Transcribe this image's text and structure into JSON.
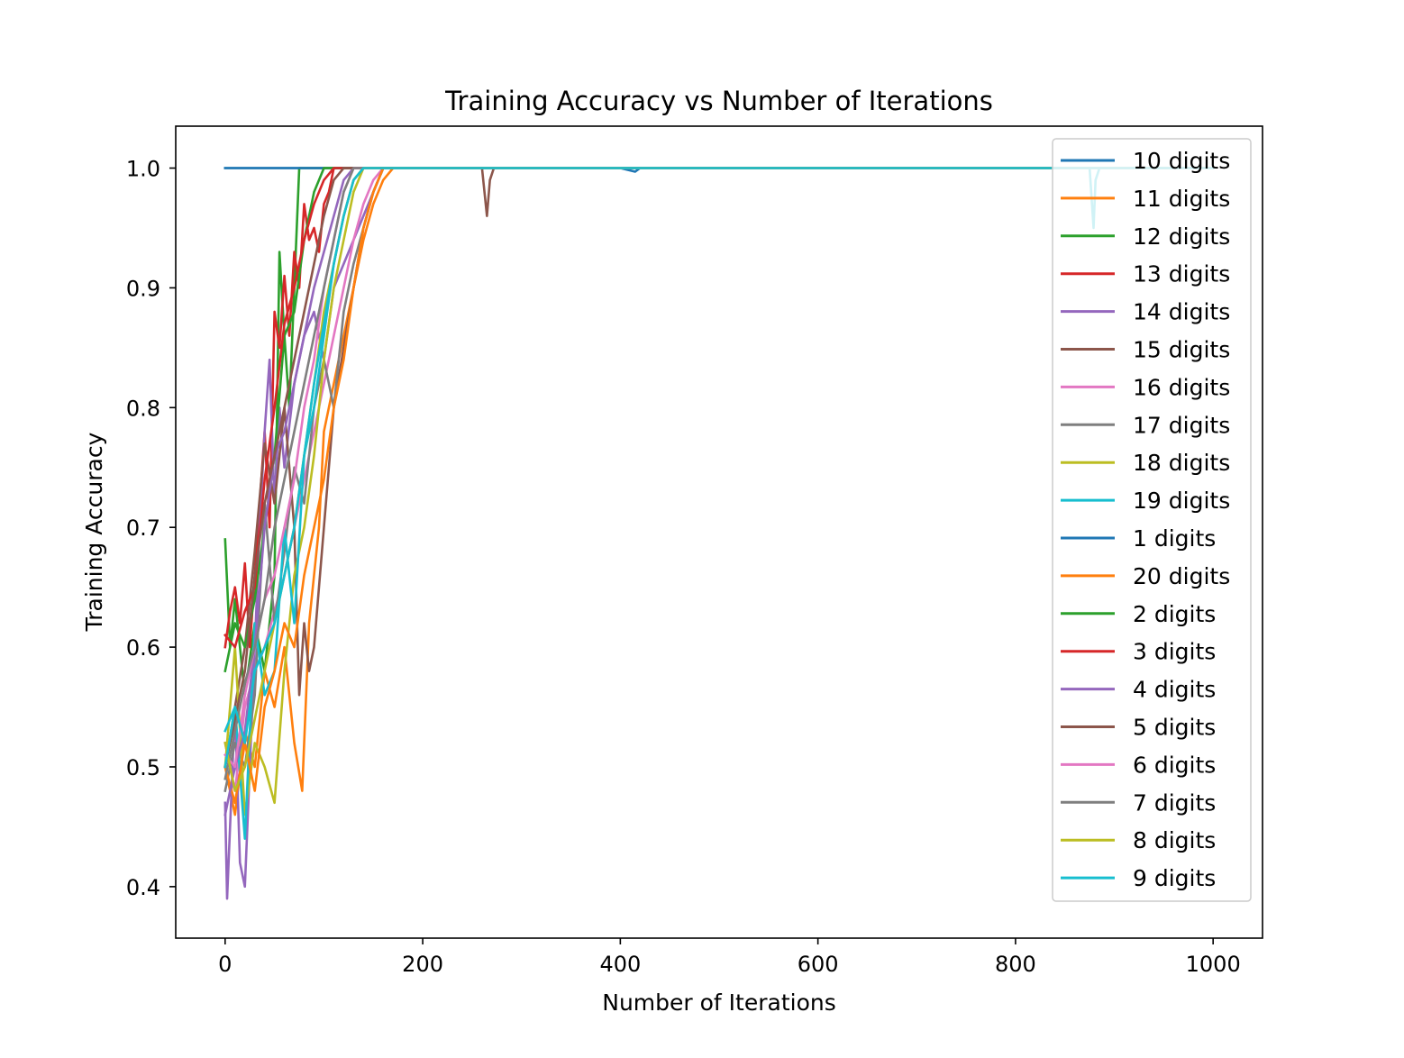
{
  "chart_data": {
    "type": "line",
    "title": "Training Accuracy vs Number of Iterations",
    "xlabel": "Number of Iterations",
    "ylabel": "Training Accuracy",
    "xlim": [
      -50,
      1050
    ],
    "ylim": [
      0.357,
      1.035
    ],
    "xticks": [
      0,
      200,
      400,
      600,
      800,
      1000
    ],
    "xtick_labels": [
      "0",
      "200",
      "400",
      "600",
      "800",
      "1000"
    ],
    "yticks": [
      0.4,
      0.5,
      0.6,
      0.7,
      0.8,
      0.9,
      1.0
    ],
    "ytick_labels": [
      "0.4",
      "0.5",
      "0.6",
      "0.7",
      "0.8",
      "0.9",
      "1.0"
    ],
    "grid": false,
    "legend_position": "top-right",
    "series": [
      {
        "name": "10 digits",
        "color": "#1f77b4",
        "x": [
          0,
          40,
          80,
          120,
          200,
          400,
          415,
          420,
          800,
          1000
        ],
        "y": [
          1.0,
          1.0,
          1.0,
          1.0,
          1.0,
          1.0,
          0.997,
          1.0,
          1.0,
          1.0
        ]
      },
      {
        "name": "11 digits",
        "color": "#ff7f0e",
        "x": [
          0,
          10,
          20,
          30,
          40,
          50,
          60,
          70,
          78,
          85,
          90,
          95,
          100,
          110,
          120,
          130,
          140,
          150,
          160,
          170,
          200,
          330,
          1000
        ],
        "y": [
          0.5,
          0.46,
          0.53,
          0.5,
          0.58,
          0.55,
          0.6,
          0.52,
          0.48,
          0.62,
          0.66,
          0.7,
          0.78,
          0.82,
          0.86,
          0.9,
          0.94,
          0.97,
          0.99,
          1.0,
          1.0,
          1.0,
          1.0
        ]
      },
      {
        "name": "12 digits",
        "color": "#2ca02c",
        "x": [
          0,
          5,
          10,
          20,
          30,
          40,
          50,
          55,
          60,
          65,
          70,
          75,
          80,
          90,
          100,
          110,
          200,
          1000
        ],
        "y": [
          0.69,
          0.6,
          0.64,
          0.56,
          0.62,
          0.58,
          0.66,
          0.93,
          0.86,
          0.8,
          0.9,
          1.0,
          1.0,
          1.0,
          1.0,
          1.0,
          1.0,
          1.0
        ]
      },
      {
        "name": "13 digits",
        "color": "#d62728",
        "x": [
          0,
          5,
          10,
          15,
          20,
          25,
          30,
          35,
          40,
          45,
          50,
          55,
          60,
          65,
          70,
          75,
          80,
          85,
          90,
          95,
          100,
          105,
          110,
          115,
          200,
          1000
        ],
        "y": [
          0.6,
          0.63,
          0.65,
          0.62,
          0.67,
          0.6,
          0.66,
          0.72,
          0.78,
          0.7,
          0.88,
          0.85,
          0.91,
          0.86,
          0.93,
          0.9,
          0.97,
          0.94,
          0.95,
          0.93,
          0.97,
          0.98,
          1.0,
          1.0,
          1.0,
          1.0
        ]
      },
      {
        "name": "14 digits",
        "color": "#9467bd",
        "x": [
          0,
          2,
          5,
          10,
          15,
          20,
          25,
          30,
          35,
          40,
          45,
          50,
          55,
          60,
          70,
          80,
          90,
          100,
          110,
          120,
          130,
          140,
          150,
          160,
          170,
          1000
        ],
        "y": [
          0.47,
          0.39,
          0.45,
          0.55,
          0.42,
          0.4,
          0.5,
          0.6,
          0.7,
          0.78,
          0.84,
          0.72,
          0.8,
          0.75,
          0.82,
          0.86,
          0.88,
          0.84,
          0.9,
          0.92,
          0.94,
          0.96,
          0.98,
          1.0,
          1.0,
          1.0
        ]
      },
      {
        "name": "15 digits",
        "color": "#8c564b",
        "x": [
          0,
          10,
          20,
          30,
          40,
          50,
          60,
          70,
          75,
          80,
          85,
          90,
          100,
          110,
          120,
          130,
          140,
          150,
          160,
          260,
          265,
          268,
          272,
          280,
          1000
        ],
        "y": [
          0.5,
          0.55,
          0.6,
          0.68,
          0.77,
          0.72,
          0.8,
          0.7,
          0.56,
          0.62,
          0.58,
          0.6,
          0.7,
          0.8,
          0.85,
          0.9,
          0.95,
          0.98,
          1.0,
          1.0,
          0.96,
          0.99,
          1.0,
          1.0,
          1.0
        ]
      },
      {
        "name": "16 digits",
        "color": "#e377c2",
        "x": [
          0,
          10,
          20,
          30,
          40,
          50,
          60,
          70,
          80,
          90,
          100,
          110,
          120,
          130,
          140,
          150,
          160,
          1000
        ],
        "y": [
          0.52,
          0.48,
          0.55,
          0.58,
          0.6,
          0.63,
          0.66,
          0.7,
          0.74,
          0.78,
          0.82,
          0.86,
          0.9,
          0.94,
          0.97,
          0.99,
          1.0,
          1.0
        ]
      },
      {
        "name": "17 digits",
        "color": "#7f7f7f",
        "x": [
          0,
          10,
          20,
          30,
          40,
          50,
          60,
          70,
          80,
          90,
          100,
          110,
          120,
          130,
          140,
          150,
          160,
          1000
        ],
        "y": [
          0.48,
          0.52,
          0.5,
          0.56,
          0.72,
          0.62,
          0.68,
          0.75,
          0.72,
          0.8,
          0.84,
          0.8,
          0.88,
          0.92,
          0.95,
          0.98,
          1.0,
          1.0
        ]
      },
      {
        "name": "18 digits",
        "color": "#bcbd22",
        "x": [
          0,
          10,
          20,
          30,
          40,
          50,
          60,
          70,
          80,
          90,
          100,
          110,
          120,
          130,
          140,
          150,
          1000
        ],
        "y": [
          0.5,
          0.6,
          0.46,
          0.52,
          0.5,
          0.47,
          0.58,
          0.66,
          0.7,
          0.76,
          0.84,
          0.9,
          0.94,
          0.98,
          1.0,
          1.0,
          1.0
        ]
      },
      {
        "name": "19 digits",
        "color": "#17becf",
        "x": [
          0,
          10,
          20,
          30,
          40,
          50,
          60,
          70,
          80,
          90,
          100,
          110,
          120,
          130,
          140,
          150,
          600,
          875,
          879,
          881,
          885,
          1000
        ],
        "y": [
          0.53,
          0.55,
          0.44,
          0.62,
          0.56,
          0.58,
          0.7,
          0.62,
          0.76,
          0.8,
          0.86,
          0.92,
          0.96,
          0.99,
          1.0,
          1.0,
          1.0,
          1.0,
          0.95,
          0.99,
          1.0,
          1.0
        ]
      },
      {
        "name": "1 digits",
        "color": "#1f77b4",
        "x": [
          0,
          100,
          300,
          600,
          1000
        ],
        "y": [
          1.0,
          1.0,
          1.0,
          1.0,
          1.0
        ]
      },
      {
        "name": "20 digits",
        "color": "#ff7f0e",
        "x": [
          0,
          10,
          20,
          30,
          40,
          50,
          60,
          70,
          80,
          90,
          100,
          110,
          120,
          130,
          140,
          150,
          160,
          170,
          1000
        ],
        "y": [
          0.5,
          0.47,
          0.52,
          0.48,
          0.55,
          0.58,
          0.62,
          0.6,
          0.66,
          0.7,
          0.74,
          0.8,
          0.84,
          0.9,
          0.95,
          0.98,
          1.0,
          1.0,
          1.0
        ]
      },
      {
        "name": "2 digits",
        "color": "#2ca02c",
        "x": [
          0,
          10,
          20,
          30,
          40,
          50,
          60,
          70,
          80,
          90,
          100,
          110,
          1000
        ],
        "y": [
          0.58,
          0.62,
          0.6,
          0.64,
          0.7,
          0.76,
          0.86,
          0.88,
          0.94,
          0.98,
          1.0,
          1.0,
          1.0
        ]
      },
      {
        "name": "3 digits",
        "color": "#d62728",
        "x": [
          0,
          10,
          20,
          30,
          40,
          50,
          60,
          70,
          80,
          90,
          100,
          110,
          1000
        ],
        "y": [
          0.61,
          0.6,
          0.63,
          0.65,
          0.74,
          0.8,
          0.87,
          0.9,
          0.94,
          0.97,
          0.99,
          1.0,
          1.0
        ]
      },
      {
        "name": "4 digits",
        "color": "#9467bd",
        "x": [
          0,
          10,
          20,
          30,
          40,
          50,
          60,
          70,
          80,
          90,
          100,
          110,
          120,
          130,
          1000
        ],
        "y": [
          0.46,
          0.5,
          0.53,
          0.6,
          0.7,
          0.76,
          0.78,
          0.82,
          0.86,
          0.9,
          0.93,
          0.96,
          0.99,
          1.0,
          1.0
        ]
      },
      {
        "name": "5 digits",
        "color": "#8c564b",
        "x": [
          0,
          10,
          20,
          30,
          40,
          50,
          60,
          70,
          80,
          90,
          100,
          110,
          120,
          1000
        ],
        "y": [
          0.5,
          0.54,
          0.58,
          0.66,
          0.72,
          0.76,
          0.8,
          0.84,
          0.88,
          0.92,
          0.96,
          0.99,
          1.0,
          1.0
        ]
      },
      {
        "name": "6 digits",
        "color": "#e377c2",
        "x": [
          0,
          10,
          20,
          30,
          40,
          50,
          60,
          70,
          80,
          90,
          100,
          110,
          120,
          130,
          1000
        ],
        "y": [
          0.51,
          0.5,
          0.56,
          0.6,
          0.64,
          0.66,
          0.7,
          0.74,
          0.8,
          0.84,
          0.9,
          0.94,
          0.98,
          1.0,
          1.0
        ]
      },
      {
        "name": "7 digits",
        "color": "#7f7f7f",
        "x": [
          0,
          10,
          20,
          30,
          40,
          50,
          60,
          70,
          80,
          90,
          100,
          110,
          120,
          130,
          1000
        ],
        "y": [
          0.49,
          0.53,
          0.57,
          0.6,
          0.64,
          0.7,
          0.74,
          0.78,
          0.82,
          0.86,
          0.9,
          0.94,
          0.98,
          1.0,
          1.0
        ]
      },
      {
        "name": "8 digits",
        "color": "#bcbd22",
        "x": [
          0,
          10,
          20,
          30,
          40,
          50,
          60,
          70,
          80,
          90,
          100,
          110,
          120,
          130,
          140,
          1000
        ],
        "y": [
          0.52,
          0.48,
          0.5,
          0.54,
          0.58,
          0.62,
          0.66,
          0.7,
          0.76,
          0.82,
          0.88,
          0.92,
          0.96,
          0.99,
          1.0,
          1.0
        ]
      },
      {
        "name": "9 digits",
        "color": "#17becf",
        "x": [
          0,
          10,
          20,
          30,
          40,
          50,
          60,
          70,
          80,
          90,
          100,
          110,
          120,
          130,
          140,
          1000
        ],
        "y": [
          0.5,
          0.55,
          0.52,
          0.58,
          0.6,
          0.62,
          0.66,
          0.7,
          0.76,
          0.82,
          0.87,
          0.92,
          0.96,
          0.99,
          1.0,
          1.0
        ]
      }
    ]
  }
}
